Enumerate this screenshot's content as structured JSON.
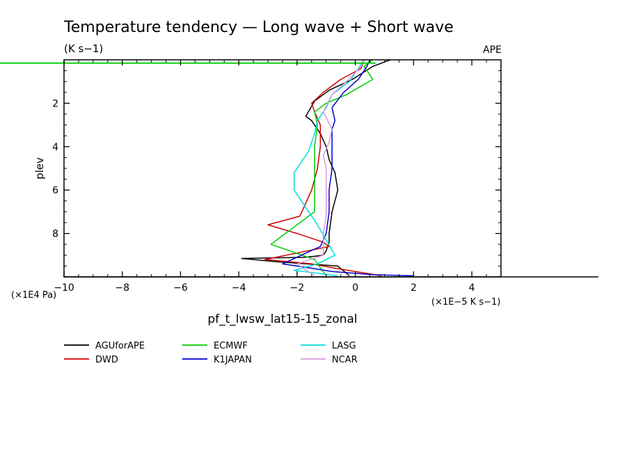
{
  "chart_data": {
    "type": "line",
    "title": "Temperature tendency — Long wave + Short wave",
    "subtitle": "(K s−1)",
    "corner_label": "APE",
    "xlabel": "pf_t_lwsw_lat15-15_zonal",
    "ylabel": "plev",
    "x_unit_label": "(×1E−5 K s−1)",
    "y_unit_label": "(×1E4 Pa)",
    "xlim": [
      -10,
      5
    ],
    "ylim": [
      10,
      0
    ],
    "x_ticks": [
      -10,
      -8,
      -6,
      -4,
      -2,
      0,
      2,
      4
    ],
    "x_tick_labels": [
      "−10",
      "−8",
      "−6",
      "−4",
      "−2",
      "0",
      "2",
      "4"
    ],
    "y_ticks": [
      2,
      4,
      6,
      8
    ],
    "y_tick_labels": [
      "2",
      "4",
      "6",
      "8"
    ],
    "legend_position": "bottom",
    "series": [
      {
        "name": "AGUforAPE",
        "color": "#000000",
        "x": [
          1.2,
          0.6,
          -0.1,
          -0.9,
          -1.4,
          -1.7,
          -1.5,
          -1.2,
          -1.0,
          -0.9,
          -0.7,
          -0.6,
          -0.8,
          -0.9,
          -0.9,
          -1.0,
          -1.1,
          -1.4,
          -1.8,
          -3.9,
          -2.7,
          -0.6,
          -0.2
        ],
        "y": [
          0.0,
          0.3,
          0.9,
          1.4,
          1.9,
          2.6,
          2.8,
          3.4,
          4.0,
          4.6,
          5.2,
          6.0,
          7.0,
          8.0,
          8.4,
          8.8,
          9.0,
          9.05,
          9.1,
          9.15,
          9.3,
          9.5,
          9.95
        ]
      },
      {
        "name": "DWD",
        "color": "#cc0000",
        "x": [
          0.3,
          0.2,
          -0.5,
          -1.1,
          -1.5,
          -1.4,
          -1.2,
          -1.2,
          -1.3,
          -1.5,
          -1.9,
          -3.0,
          -2.0,
          -1.1,
          -0.9,
          -3.1,
          -1.5,
          -0.7,
          0.9
        ],
        "y": [
          0.0,
          0.4,
          0.9,
          1.5,
          2.0,
          2.4,
          3.0,
          4.0,
          5.0,
          6.0,
          7.2,
          7.6,
          8.0,
          8.4,
          8.6,
          9.2,
          9.4,
          9.6,
          9.95
        ]
      },
      {
        "name": "ECMWF",
        "color": "#00cc00",
        "x": [
          0.6,
          0.3,
          0.6,
          -0.3,
          -1.0,
          -1.4,
          -1.3,
          -1.4,
          -1.4,
          -1.4,
          -1.4,
          -2.9,
          -1.4,
          -1.0
        ],
        "y": [
          0.0,
          0.3,
          0.9,
          1.6,
          2.0,
          2.4,
          3.0,
          4.0,
          5.0,
          6.0,
          7.0,
          8.5,
          9.2,
          9.95
        ]
      },
      {
        "name": "K1JAPAN",
        "color": "#0000cc",
        "x": [
          0.5,
          0.4,
          0.1,
          -0.4,
          -0.8,
          -0.7,
          -0.8,
          -0.8,
          -0.8,
          -0.9,
          -0.9,
          -1.0,
          -1.2,
          -2.5,
          -1.5,
          -0.8,
          0.6,
          2.0
        ],
        "y": [
          0.0,
          0.3,
          0.9,
          1.5,
          2.2,
          2.8,
          3.2,
          4.0,
          5.0,
          6.0,
          7.0,
          8.0,
          8.6,
          9.4,
          9.6,
          9.75,
          9.9,
          9.95
        ]
      },
      {
        "name": "LASG",
        "color": "#00dddd",
        "x": [
          0.3,
          0.1,
          -0.2,
          -0.8,
          -1.0,
          -1.3,
          -1.4,
          -1.6,
          -2.1,
          -2.1,
          -1.8,
          -1.3,
          -0.7,
          -1.3,
          -2.1,
          -0.6
        ],
        "y": [
          0.0,
          0.4,
          1.0,
          1.6,
          2.2,
          2.8,
          3.4,
          4.2,
          5.2,
          6.0,
          6.6,
          7.6,
          9.0,
          9.4,
          9.7,
          9.95
        ]
      },
      {
        "name": "NCAR",
        "color": "#dd99dd",
        "x": [
          0.3,
          0.2,
          -0.3,
          -0.8,
          -1.1,
          -0.8,
          -0.9,
          -1.1,
          -1.0,
          -1.0,
          -1.0,
          -1.1,
          -1.1,
          -2.0,
          -1.4
        ],
        "y": [
          0.0,
          0.3,
          1.0,
          1.6,
          2.4,
          3.2,
          3.8,
          4.4,
          5.0,
          6.0,
          7.2,
          8.0,
          9.0,
          9.4,
          9.95
        ]
      }
    ],
    "extra_lines": [
      {
        "color": "#00cc00",
        "y": 0.15,
        "x_from": -12.2,
        "x_to": 0.7
      }
    ]
  }
}
